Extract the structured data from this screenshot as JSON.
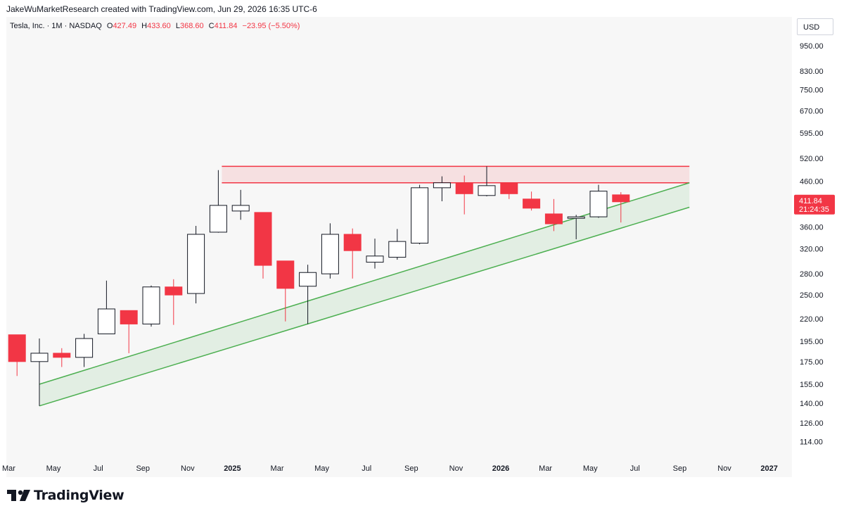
{
  "caption": "JakeWuMarketResearch created with TradingView.com, Jun 29, 2026 16:35 UTC-6",
  "header": {
    "symbol": "Tesla, Inc. · 1M · NASDAQ",
    "o_label": "O",
    "o_value": "427.49",
    "h_label": "H",
    "h_value": "433.60",
    "l_label": "L",
    "l_value": "368.60",
    "c_label": "C",
    "c_value": "411.84",
    "change": "−23.95 (−5.50%)"
  },
  "currency": "USD",
  "price_tag": {
    "price": "411.84",
    "countdown": "21:24:35"
  },
  "logo_text": "TradingView",
  "colors": {
    "up": "#131722",
    "down": "#f23645",
    "resistance": "#f23645",
    "support": "#4caf50",
    "plot_bg": "#f7f7f7"
  },
  "chart_data": {
    "type": "candlestick",
    "y_scale": "log",
    "ylim": [
      104,
      1050
    ],
    "y_ticks": [
      "950.00",
      "830.00",
      "750.00",
      "670.00",
      "595.00",
      "520.00",
      "460.00",
      "400.00",
      "360.00",
      "320.00",
      "280.00",
      "250.00",
      "220.00",
      "195.00",
      "175.00",
      "155.00",
      "140.00",
      "126.00",
      "114.00"
    ],
    "x_ticks": [
      {
        "label": "Mar",
        "i": -1.37,
        "bold": false
      },
      {
        "label": "May",
        "i": 0.63,
        "bold": false
      },
      {
        "label": "Jul",
        "i": 2.63,
        "bold": false
      },
      {
        "label": "Sep",
        "i": 4.63,
        "bold": false
      },
      {
        "label": "Nov",
        "i": 6.63,
        "bold": false
      },
      {
        "label": "2025",
        "i": 8.63,
        "bold": true
      },
      {
        "label": "Mar",
        "i": 10.63,
        "bold": false
      },
      {
        "label": "May",
        "i": 12.63,
        "bold": false
      },
      {
        "label": "Jul",
        "i": 14.63,
        "bold": false
      },
      {
        "label": "Sep",
        "i": 16.63,
        "bold": false
      },
      {
        "label": "Nov",
        "i": 18.63,
        "bold": false
      },
      {
        "label": "2026",
        "i": 20.63,
        "bold": true
      },
      {
        "label": "Mar",
        "i": 22.63,
        "bold": false
      },
      {
        "label": "May",
        "i": 24.63,
        "bold": false
      },
      {
        "label": "Jul",
        "i": 26.63,
        "bold": false
      },
      {
        "label": "Sep",
        "i": 28.63,
        "bold": false
      },
      {
        "label": "Nov",
        "i": 30.63,
        "bold": false
      },
      {
        "label": "2027",
        "i": 32.63,
        "bold": true
      }
    ],
    "candles": [
      {
        "month": "2024-03",
        "i": -1,
        "o": 202,
        "h": 202,
        "l": 162,
        "c": 175
      },
      {
        "month": "2024-04",
        "i": 0,
        "o": 175,
        "h": 198,
        "l": 138,
        "c": 183
      },
      {
        "month": "2024-05",
        "i": 1,
        "o": 183,
        "h": 188,
        "l": 170,
        "c": 179
      },
      {
        "month": "2024-06",
        "i": 2,
        "o": 179,
        "h": 203,
        "l": 170,
        "c": 198
      },
      {
        "month": "2024-07",
        "i": 3,
        "o": 203,
        "h": 270,
        "l": 203,
        "c": 232
      },
      {
        "month": "2024-08",
        "i": 4,
        "o": 230,
        "h": 230,
        "l": 183,
        "c": 214
      },
      {
        "month": "2024-09",
        "i": 5,
        "o": 214,
        "h": 263,
        "l": 211,
        "c": 261
      },
      {
        "month": "2024-10",
        "i": 6,
        "o": 261,
        "h": 272,
        "l": 213,
        "c": 250
      },
      {
        "month": "2024-11",
        "i": 7,
        "o": 252,
        "h": 362,
        "l": 239,
        "c": 346
      },
      {
        "month": "2024-12",
        "i": 8,
        "o": 350,
        "h": 488,
        "l": 349,
        "c": 404
      },
      {
        "month": "2025-01",
        "i": 9,
        "o": 392,
        "h": 439,
        "l": 374,
        "c": 404
      },
      {
        "month": "2025-02",
        "i": 10,
        "o": 389,
        "h": 389,
        "l": 273,
        "c": 293
      },
      {
        "month": "2025-03",
        "i": 11,
        "o": 300,
        "h": 300,
        "l": 217,
        "c": 259
      },
      {
        "month": "2025-04",
        "i": 12,
        "o": 262,
        "h": 294,
        "l": 214,
        "c": 282
      },
      {
        "month": "2025-05",
        "i": 13,
        "o": 280,
        "h": 367,
        "l": 273,
        "c": 346
      },
      {
        "month": "2025-06",
        "i": 14,
        "o": 346,
        "h": 357,
        "l": 273,
        "c": 317
      },
      {
        "month": "2025-07",
        "i": 15,
        "o": 298,
        "h": 338,
        "l": 288,
        "c": 308
      },
      {
        "month": "2025-08",
        "i": 16,
        "o": 306,
        "h": 356,
        "l": 302,
        "c": 333
      },
      {
        "month": "2025-09",
        "i": 17,
        "o": 330,
        "h": 451,
        "l": 328,
        "c": 444
      },
      {
        "month": "2025-10",
        "i": 18,
        "o": 444,
        "h": 472,
        "l": 413,
        "c": 456
      },
      {
        "month": "2025-11",
        "i": 19,
        "o": 456,
        "h": 474,
        "l": 385,
        "c": 430
      },
      {
        "month": "2025-12",
        "i": 20,
        "o": 426,
        "h": 498,
        "l": 424,
        "c": 449
      },
      {
        "month": "2026-01",
        "i": 21,
        "o": 456,
        "h": 456,
        "l": 418,
        "c": 430
      },
      {
        "month": "2026-02",
        "i": 22,
        "o": 418,
        "h": 435,
        "l": 393,
        "c": 398
      },
      {
        "month": "2026-03",
        "i": 23,
        "o": 386,
        "h": 418,
        "l": 352,
        "c": 366
      },
      {
        "month": "2026-04",
        "i": 24,
        "o": 377,
        "h": 384,
        "l": 337,
        "c": 380
      },
      {
        "month": "2026-05",
        "i": 25,
        "o": 380,
        "h": 451,
        "l": 378,
        "c": 436
      },
      {
        "month": "2026-06",
        "i": 26,
        "o": 427.49,
        "h": 433.6,
        "l": 368.6,
        "c": 411.84
      }
    ],
    "resistance_zone": {
      "low": 456,
      "high": 498,
      "from_i": 8,
      "to_i": 29
    },
    "support_channel": {
      "upper": {
        "from_i": 0,
        "from_p": 155,
        "to_i": 29,
        "to_p": 456
      },
      "lower": {
        "from_i": 0,
        "from_p": 138,
        "to_i": 29,
        "to_p": 400
      }
    }
  }
}
